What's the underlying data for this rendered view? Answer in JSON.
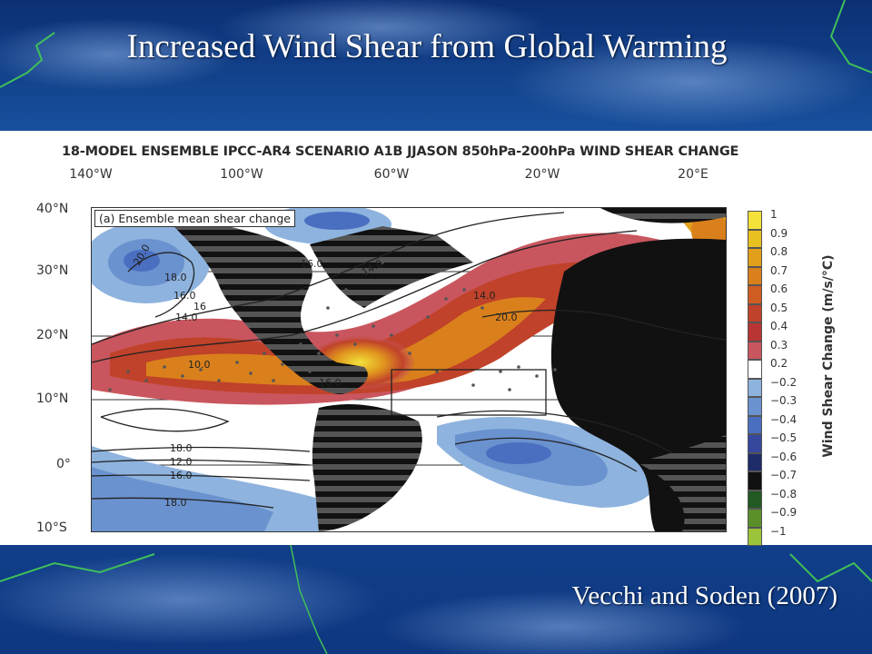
{
  "slide": {
    "title": "Increased Wind Shear from Global Warming",
    "citation": "Vecchi and Soden (2007)"
  },
  "figure": {
    "header": "18-MODEL ENSEMBLE IPCC-AR4 SCENARIO A1B JJASON 850hPa-200hPa WIND SHEAR CHANGE",
    "panel_label": "(a) Ensemble mean shear change",
    "longitude_labels": [
      "140°W",
      "100°W",
      "60°W",
      "20°W",
      "20°E"
    ],
    "latitude_labels": [
      "40°N",
      "30°N",
      "20°N",
      "10°N",
      "0°",
      "10°S"
    ],
    "contour_labels": [
      "20.0",
      "18.0",
      "16.0",
      "14.0",
      "16",
      "14.0",
      "10.0",
      "16.0",
      "14.0",
      "20.0",
      "16.0",
      "18.0",
      "12.0",
      "16.0",
      "18.0"
    ],
    "colorbar": {
      "title": "Wind Shear Change (m/s/°C)",
      "labels": [
        "1",
        "0.9",
        "0.8",
        "0.7",
        "0.6",
        "0.5",
        "0.4",
        "0.3",
        "0.2",
        "−0.2",
        "−0.3",
        "−0.4",
        "−0.5",
        "−0.6",
        "−0.7",
        "−0.8",
        "−0.9",
        "−1"
      ],
      "colors": [
        "#f3e23a",
        "#e8c020",
        "#e2a01a",
        "#d9801c",
        "#cf5d22",
        "#c0422a",
        "#b83533",
        "#c9565e",
        "#ffffff",
        "#8eb3de",
        "#6a92cf",
        "#4a6fc0",
        "#35489e",
        "#1e2c6a",
        "#111111",
        "#215a22",
        "#5b8f2a",
        "#9bc43a"
      ]
    }
  },
  "colors": {
    "background": "#1b58a8",
    "title_text": "#ffffff",
    "land": "#111111",
    "positive_shear": "#c0422a",
    "negative_shear": "#6a92cf"
  }
}
